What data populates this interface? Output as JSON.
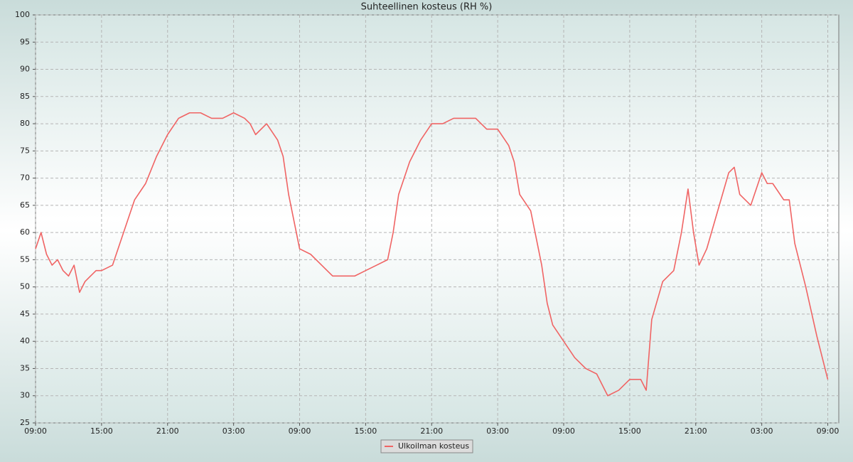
{
  "chart_data": {
    "type": "line",
    "title": "Suhteellinen kosteus (RH %)",
    "x": [
      0,
      0.5,
      1,
      1.5,
      2,
      2.5,
      3,
      3.5,
      4,
      4.5,
      5,
      5.5,
      6,
      7,
      8,
      8.5,
      9,
      10,
      11,
      12,
      13,
      14,
      15,
      16,
      17,
      18,
      19,
      19.5,
      20,
      21,
      22,
      22.5,
      23,
      23.5,
      24,
      25,
      26,
      27,
      28,
      29,
      30,
      31,
      32,
      32.5,
      33,
      34,
      35,
      36,
      37,
      38,
      39,
      40,
      41,
      42,
      43,
      43.5,
      44,
      45,
      46,
      46.5,
      47,
      48,
      49,
      50,
      51,
      52,
      53,
      54,
      55,
      55.5,
      56,
      57,
      58,
      58.7,
      59.3,
      59.8,
      60.3,
      61,
      62,
      63,
      63.5,
      64,
      65,
      66,
      66.5,
      67,
      68,
      68.5,
      69,
      70,
      71,
      72
    ],
    "series": [
      {
        "name": "Ulkoilman kosteus",
        "color": "#f06464",
        "values": [
          57,
          60,
          56,
          54,
          55,
          53,
          52,
          54,
          49,
          51,
          52,
          53,
          53,
          54,
          60,
          63,
          66,
          69,
          74,
          78,
          81,
          82,
          82,
          81,
          81,
          82,
          81,
          80,
          78,
          80,
          77,
          74,
          67,
          62,
          57,
          56,
          54,
          52,
          52,
          52,
          53,
          54,
          55,
          60,
          67,
          73,
          77,
          80,
          80,
          81,
          81,
          81,
          79,
          79,
          76,
          73,
          67,
          64,
          54,
          47,
          43,
          40,
          37,
          35,
          34,
          30,
          31,
          33,
          33,
          31,
          44,
          51,
          53,
          60,
          68,
          60,
          54,
          57,
          64,
          71,
          72,
          67,
          65,
          71,
          69,
          69,
          66,
          66,
          58,
          50,
          41,
          33
        ]
      }
    ],
    "xlim": [
      0,
      73
    ],
    "xticks": [
      {
        "value": 0,
        "label": "09:00"
      },
      {
        "value": 6,
        "label": "15:00"
      },
      {
        "value": 12,
        "label": "21:00"
      },
      {
        "value": 18,
        "label": "03:00"
      },
      {
        "value": 24,
        "label": "09:00"
      },
      {
        "value": 30,
        "label": "15:00"
      },
      {
        "value": 36,
        "label": "21:00"
      },
      {
        "value": 42,
        "label": "03:00"
      },
      {
        "value": 48,
        "label": "09:00"
      },
      {
        "value": 54,
        "label": "15:00"
      },
      {
        "value": 60,
        "label": "21:00"
      },
      {
        "value": 66,
        "label": "03:00"
      },
      {
        "value": 72,
        "label": "09:00"
      }
    ],
    "ylim": [
      25,
      100
    ],
    "yticks": [
      25,
      30,
      35,
      40,
      45,
      50,
      55,
      60,
      65,
      70,
      75,
      80,
      85,
      90,
      95,
      100
    ],
    "grid": true
  }
}
